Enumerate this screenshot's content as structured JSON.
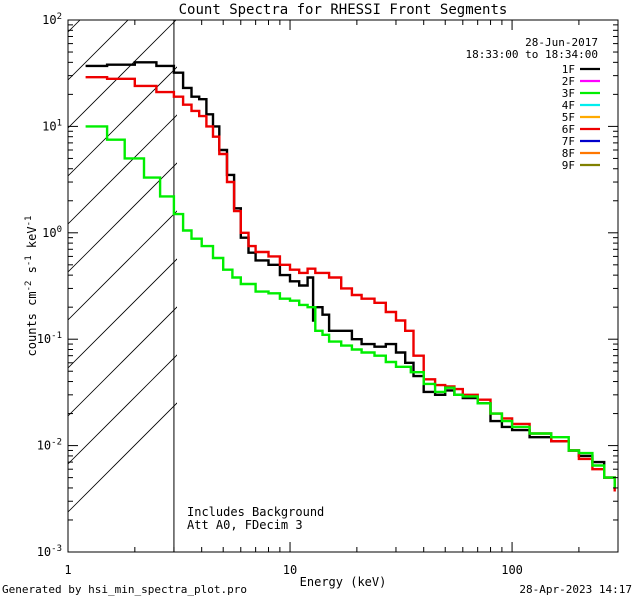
{
  "chart_data": {
    "type": "line",
    "title": "Count Spectra for RHESSI Front Segments",
    "xlabel": "Energy (keV)",
    "ylabel_base": "counts cm",
    "ylabel_exp1": "-2",
    "ylabel_mid1": " s",
    "ylabel_exp2": "-1",
    "ylabel_mid2": " keV",
    "ylabel_exp3": "-1",
    "xscale": "log",
    "yscale": "log",
    "xlim": [
      1.0,
      300
    ],
    "ylim": [
      0.001,
      100
    ],
    "x_ticks": [
      {
        "value": 1,
        "label": "1"
      },
      {
        "value": 10,
        "label": "10"
      },
      {
        "value": 100,
        "label": "100"
      }
    ],
    "y_ticks": [
      {
        "value": 0.001,
        "base": "10",
        "exp": "-3"
      },
      {
        "value": 0.01,
        "base": "10",
        "exp": "-2"
      },
      {
        "value": 0.1,
        "base": "10",
        "exp": "-1"
      },
      {
        "value": 1,
        "base": "10",
        "exp": "0"
      },
      {
        "value": 10,
        "base": "10",
        "exp": "1"
      },
      {
        "value": 100,
        "base": "10",
        "exp": "2"
      }
    ],
    "legend_position": "top-right",
    "date": "28-Jun-2017",
    "time_range": "18:33:00 to 18:34:00",
    "hatched_region_xmax": 3.0,
    "annotations": [
      "Includes Background",
      "Att A0, FDecim 3"
    ],
    "legend": [
      {
        "name": "1F",
        "color": "#000000"
      },
      {
        "name": "2F",
        "color": "#ff00ff"
      },
      {
        "name": "3F",
        "color": "#00ee00"
      },
      {
        "name": "4F",
        "color": "#00eeee"
      },
      {
        "name": "5F",
        "color": "#ffaa00"
      },
      {
        "name": "6F",
        "color": "#ee0000"
      },
      {
        "name": "7F",
        "color": "#0000cc"
      },
      {
        "name": "8F",
        "color": "#ff7700"
      },
      {
        "name": "9F",
        "color": "#808000"
      }
    ],
    "series": [
      {
        "name": "1F",
        "color": "#000000",
        "x": [
          1.2,
          1.5,
          2.0,
          2.5,
          3.0,
          3.3,
          3.6,
          3.9,
          4.2,
          4.5,
          4.8,
          5.2,
          5.6,
          6.0,
          6.5,
          7,
          8,
          9,
          10,
          11,
          12,
          12.7,
          13,
          14,
          15,
          17,
          19,
          21,
          24,
          27,
          30,
          33,
          36,
          40,
          45,
          50,
          55,
          60,
          70,
          80,
          90,
          100,
          120,
          150,
          180,
          200,
          230,
          260,
          290
        ],
        "y": [
          37,
          38,
          40,
          37,
          32,
          23,
          19,
          18,
          13,
          10,
          6,
          3.5,
          1.7,
          0.9,
          0.65,
          0.55,
          0.5,
          0.4,
          0.35,
          0.32,
          0.38,
          0.15,
          0.2,
          0.17,
          0.12,
          0.12,
          0.1,
          0.09,
          0.085,
          0.09,
          0.075,
          0.06,
          0.045,
          0.032,
          0.03,
          0.033,
          0.03,
          0.028,
          0.025,
          0.017,
          0.015,
          0.014,
          0.012,
          0.011,
          0.009,
          0.008,
          0.007,
          0.005,
          0.004
        ]
      },
      {
        "name": "6F",
        "color": "#ee0000",
        "x": [
          1.2,
          1.5,
          2.0,
          2.5,
          3.0,
          3.3,
          3.6,
          3.9,
          4.2,
          4.5,
          4.8,
          5.2,
          5.6,
          6.0,
          6.5,
          7,
          8,
          9,
          10,
          11,
          12,
          13,
          15,
          17,
          19,
          21,
          24,
          27,
          30,
          33,
          36,
          40,
          45,
          50,
          55,
          60,
          70,
          80,
          90,
          100,
          120,
          150,
          180,
          200,
          230,
          260,
          290
        ],
        "y": [
          29,
          28,
          24,
          21,
          19,
          16,
          14,
          12.5,
          10,
          8,
          5.5,
          3.0,
          1.6,
          1.0,
          0.75,
          0.66,
          0.6,
          0.5,
          0.45,
          0.42,
          0.46,
          0.42,
          0.38,
          0.3,
          0.26,
          0.24,
          0.22,
          0.18,
          0.15,
          0.12,
          0.07,
          0.042,
          0.037,
          0.036,
          0.034,
          0.03,
          0.027,
          0.02,
          0.018,
          0.016,
          0.013,
          0.011,
          0.009,
          0.0075,
          0.006,
          0.005,
          0.0037
        ]
      },
      {
        "name": "3F",
        "color": "#00ee00",
        "x": [
          1.2,
          1.5,
          1.8,
          2.2,
          2.6,
          3.0,
          3.3,
          3.6,
          4.0,
          4.5,
          5.0,
          5.5,
          6.0,
          7,
          8,
          9,
          10,
          11,
          12,
          13,
          14,
          15,
          17,
          19,
          21,
          24,
          27,
          30,
          35,
          40,
          45,
          50,
          55,
          60,
          70,
          80,
          90,
          100,
          120,
          150,
          180,
          200,
          230,
          260,
          290
        ],
        "y": [
          10,
          7.5,
          5.0,
          3.3,
          2.2,
          1.5,
          1.05,
          0.88,
          0.75,
          0.58,
          0.45,
          0.38,
          0.33,
          0.28,
          0.27,
          0.24,
          0.23,
          0.21,
          0.2,
          0.12,
          0.11,
          0.095,
          0.087,
          0.08,
          0.075,
          0.07,
          0.061,
          0.055,
          0.049,
          0.038,
          0.032,
          0.035,
          0.03,
          0.029,
          0.025,
          0.02,
          0.017,
          0.015,
          0.013,
          0.012,
          0.009,
          0.0085,
          0.0065,
          0.005,
          0.004
        ]
      }
    ]
  },
  "footer": {
    "generated_by": "Generated by hsi_min_spectra_plot.pro",
    "timestamp": "28-Apr-2023 14:17"
  }
}
